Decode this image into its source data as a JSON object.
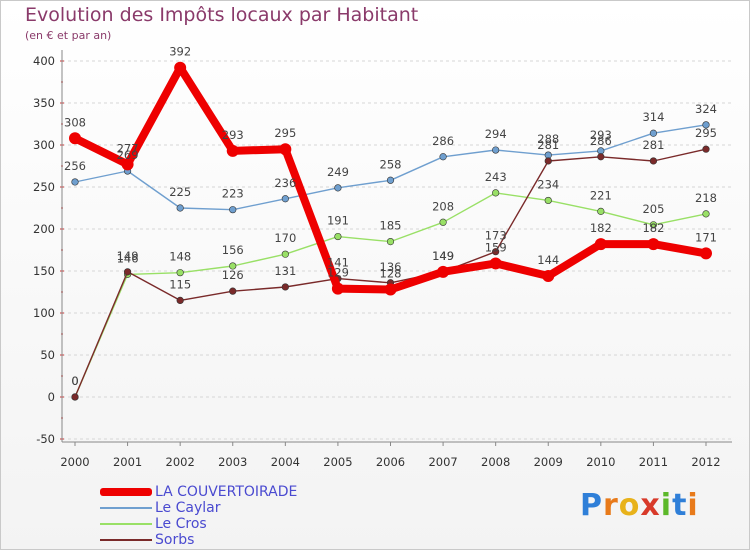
{
  "title": "Evolution des Impôts locaux par Habitant",
  "subtitle": "(en € et par an)",
  "logo_text": "Proxiti",
  "chart_data": {
    "type": "line",
    "title": "Evolution des Impôts locaux par Habitant",
    "subtitle": "(en € et par an)",
    "x": [
      "2000",
      "2001",
      "2002",
      "2003",
      "2004",
      "2005",
      "2006",
      "2007",
      "2008",
      "2009",
      "2010",
      "2011",
      "2012"
    ],
    "y_ticks": [
      "-50",
      "0",
      "50",
      "100",
      "150",
      "200",
      "250",
      "300",
      "350",
      "400"
    ],
    "ylim": [
      -50,
      400
    ],
    "grid": "horizontal dashed",
    "legend_position": "bottom-left",
    "series": [
      {
        "name": "LA COUVERTOIRADE",
        "color": "#ee0000",
        "values": [
          308,
          277,
          392,
          293,
          295,
          129,
          128,
          149,
          159,
          144,
          182,
          182,
          171
        ],
        "labels": [
          "308",
          "277",
          "392",
          "293",
          "295",
          "129",
          "128",
          "149",
          "159",
          "144",
          "182",
          "182",
          "171"
        ]
      },
      {
        "name": "Le Caylar",
        "color": "#6f9fcf",
        "values": [
          256,
          269,
          225,
          223,
          236,
          249,
          258,
          286,
          294,
          288,
          293,
          314,
          324
        ],
        "labels": [
          "256",
          "269",
          "225",
          "223",
          "236",
          "249",
          "258",
          "286",
          "294",
          "288",
          "293",
          "314",
          "324"
        ]
      },
      {
        "name": "Le Cros",
        "color": "#99e066",
        "values": [
          0,
          146,
          148,
          156,
          170,
          191,
          185,
          208,
          243,
          234,
          221,
          205,
          218
        ],
        "labels": [
          "0",
          "146",
          "148",
          "156",
          "170",
          "191",
          "185",
          "208",
          "243",
          "234",
          "221",
          "205",
          "218"
        ]
      },
      {
        "name": "Sorbs",
        "color": "#7a2a2a",
        "values": [
          0,
          149,
          115,
          126,
          131,
          141,
          136,
          149,
          173,
          281,
          286,
          281,
          295
        ],
        "labels": [
          "0",
          "149",
          "115",
          "126",
          "131",
          "141",
          "136",
          "149",
          "173",
          "281",
          "286",
          "281",
          "295"
        ]
      }
    ]
  }
}
